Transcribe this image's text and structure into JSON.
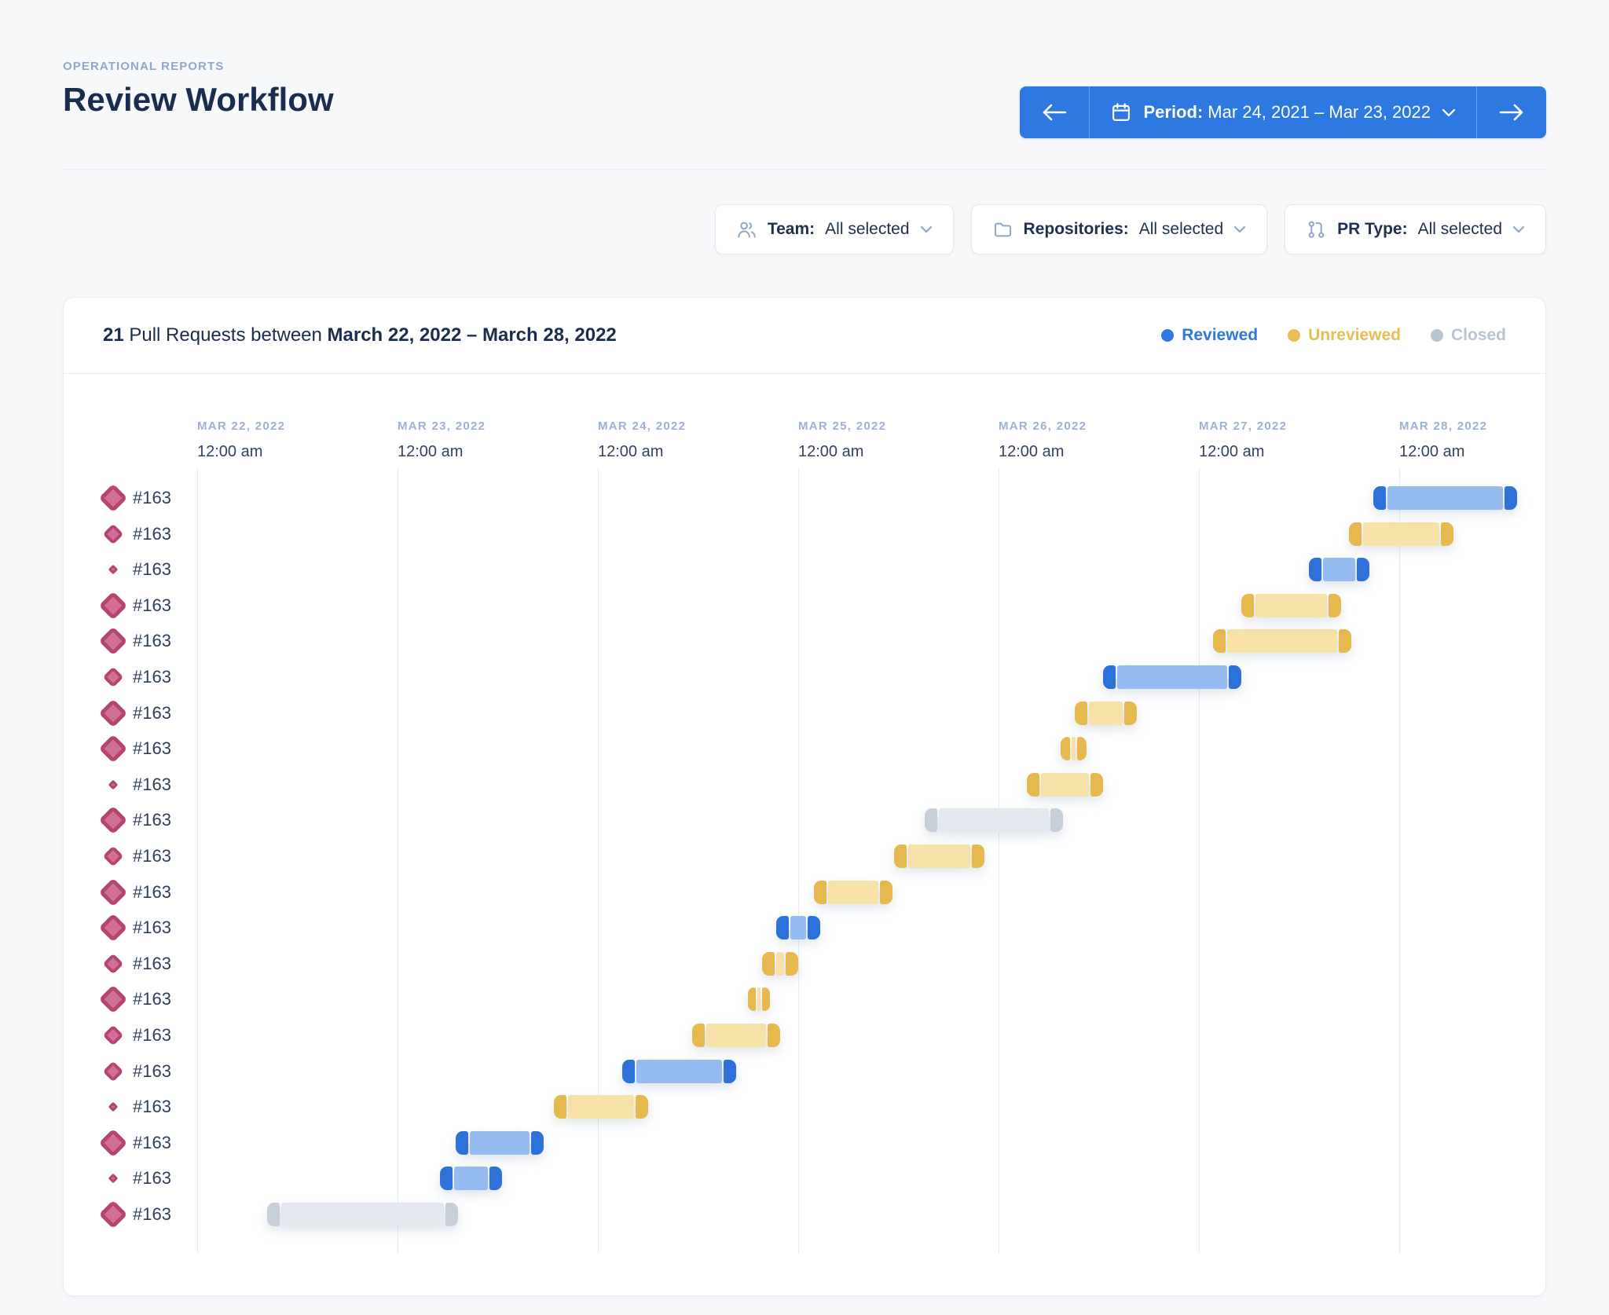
{
  "page": {
    "eyebrow": "OPERATIONAL REPORTS",
    "title": "Review Workflow"
  },
  "period": {
    "label": "Period:",
    "value": "Mar 24, 2021 – Mar 23, 2022"
  },
  "filters": [
    {
      "icon": "team-icon",
      "label": "Team:",
      "value": "All selected"
    },
    {
      "icon": "folder-icon",
      "label": "Repositories:",
      "value": "All selected"
    },
    {
      "icon": "pr-type-icon",
      "label": "PR Type:",
      "value": "All selected"
    }
  ],
  "summary": {
    "count": "21",
    "middle": " Pull Requests between ",
    "range": "March 22, 2022 – March 28, 2022"
  },
  "legend": [
    {
      "status": "reviewed",
      "label": "Reviewed",
      "color": "#2e78e2"
    },
    {
      "status": "unreviewed",
      "label": "Unreviewed",
      "color": "#e8bd55"
    },
    {
      "status": "closed",
      "label": "Closed",
      "color": "#b9c4d3"
    }
  ],
  "chart_data": {
    "type": "gantt",
    "time_axis_start": "Mar 22, 2022 12:00 am",
    "day_unit": "days from March 22, 2022 12:00 am",
    "columns": [
      {
        "date": "MAR 22, 2022",
        "time": "12:00 am"
      },
      {
        "date": "MAR 23, 2022",
        "time": "12:00 am"
      },
      {
        "date": "MAR 24, 2022",
        "time": "12:00 am"
      },
      {
        "date": "MAR 25, 2022",
        "time": "12:00 am"
      },
      {
        "date": "MAR 26, 2022",
        "time": "12:00 am"
      },
      {
        "date": "MAR 27, 2022",
        "time": "12:00 am"
      },
      {
        "date": "MAR 28, 2022",
        "time": "12:00 am"
      }
    ],
    "colors": {
      "reviewed": {
        "cap": "#2d71d9",
        "body": "#95bbf0"
      },
      "unreviewed": {
        "cap": "#e6b94f",
        "body": "#f6e2a9"
      },
      "closed": {
        "cap": "#c7cfd9",
        "body": "#e3e8ee"
      }
    },
    "rows": [
      {
        "label": "#163",
        "marker_size": "large",
        "status": "reviewed",
        "start_days": 5.87,
        "end_days": 6.59
      },
      {
        "label": "#163",
        "marker_size": "medium",
        "status": "unreviewed",
        "start_days": 5.75,
        "end_days": 6.27
      },
      {
        "label": "#163",
        "marker_size": "small",
        "status": "reviewed",
        "start_days": 5.55,
        "end_days": 5.85
      },
      {
        "label": "#163",
        "marker_size": "large",
        "status": "unreviewed",
        "start_days": 5.21,
        "end_days": 5.71
      },
      {
        "label": "#163",
        "marker_size": "large",
        "status": "unreviewed",
        "start_days": 5.07,
        "end_days": 5.76
      },
      {
        "label": "#163",
        "marker_size": "medium",
        "status": "reviewed",
        "start_days": 4.52,
        "end_days": 5.21
      },
      {
        "label": "#163",
        "marker_size": "large",
        "status": "unreviewed",
        "start_days": 4.38,
        "end_days": 4.69
      },
      {
        "label": "#163",
        "marker_size": "large",
        "status": "unreviewed",
        "start_days": 4.31,
        "end_days": 4.44
      },
      {
        "label": "#163",
        "marker_size": "small",
        "status": "unreviewed",
        "start_days": 4.14,
        "end_days": 4.52
      },
      {
        "label": "#163",
        "marker_size": "large",
        "status": "closed",
        "start_days": 3.63,
        "end_days": 4.32
      },
      {
        "label": "#163",
        "marker_size": "medium",
        "status": "unreviewed",
        "start_days": 3.48,
        "end_days": 3.93
      },
      {
        "label": "#163",
        "marker_size": "large",
        "status": "unreviewed",
        "start_days": 3.08,
        "end_days": 3.47
      },
      {
        "label": "#163",
        "marker_size": "large",
        "status": "reviewed",
        "start_days": 2.89,
        "end_days": 3.11
      },
      {
        "label": "#163",
        "marker_size": "medium",
        "status": "unreviewed",
        "start_days": 2.82,
        "end_days": 3.0
      },
      {
        "label": "#163",
        "marker_size": "large",
        "status": "unreviewed",
        "start_days": 2.75,
        "end_days": 2.86
      },
      {
        "label": "#163",
        "marker_size": "medium",
        "status": "unreviewed",
        "start_days": 2.47,
        "end_days": 2.91
      },
      {
        "label": "#163",
        "marker_size": "medium",
        "status": "reviewed",
        "start_days": 2.12,
        "end_days": 2.69
      },
      {
        "label": "#163",
        "marker_size": "small",
        "status": "unreviewed",
        "start_days": 1.78,
        "end_days": 2.25
      },
      {
        "label": "#163",
        "marker_size": "large",
        "status": "reviewed",
        "start_days": 1.29,
        "end_days": 1.73
      },
      {
        "label": "#163",
        "marker_size": "small",
        "status": "reviewed",
        "start_days": 1.21,
        "end_days": 1.52
      },
      {
        "label": "#163",
        "marker_size": "large",
        "status": "closed",
        "start_days": 0.35,
        "end_days": 1.3
      }
    ]
  }
}
